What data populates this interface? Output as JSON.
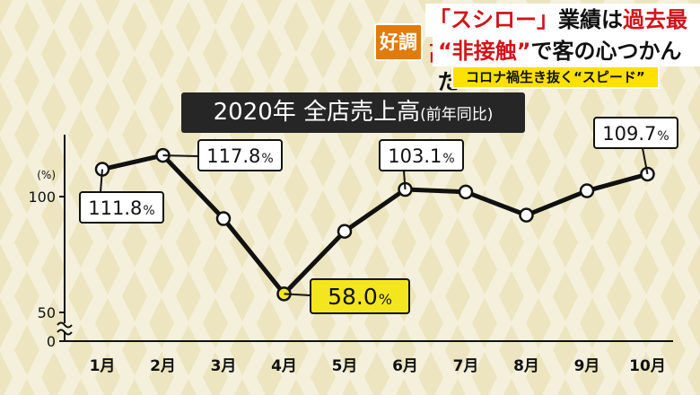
{
  "caption": {
    "badge": "好調",
    "line1_parts": [
      "「スシロー」",
      "業績は",
      "過去最高"
    ],
    "line2_parts": [
      "“非接触”",
      "で客の心つかんだ"
    ],
    "sub": "コロナ禍生き抜く“スピード”",
    "colors": {
      "badge": "#e07b0d",
      "highlight": "#d1141a",
      "sub_bg": "#ffe000"
    }
  },
  "chart_data": {
    "type": "line",
    "title": "2020年 全店売上高",
    "title_note": "(前年同比)",
    "ylabel": "(%)",
    "categories": [
      "1月",
      "2月",
      "3月",
      "4月",
      "5月",
      "6月",
      "7月",
      "8月",
      "9月",
      "10月"
    ],
    "values": [
      111.8,
      117.8,
      90.5,
      58.0,
      85.0,
      103.1,
      102.0,
      92.0,
      102.5,
      109.7
    ],
    "yticks": [
      0,
      50,
      100
    ],
    "axis_break": true,
    "ylim": [
      45,
      125
    ],
    "grid": false,
    "point_labels": [
      {
        "index": 0,
        "text": "111.8",
        "unit": "%"
      },
      {
        "index": 1,
        "text": "117.8",
        "unit": "%"
      },
      {
        "index": 3,
        "text": "58.0",
        "unit": "%",
        "highlight": true
      },
      {
        "index": 5,
        "text": "103.1",
        "unit": "%"
      },
      {
        "index": 9,
        "text": "109.7",
        "unit": "%"
      }
    ],
    "colors": {
      "line": "#111111",
      "marker": "#ffffff",
      "highlight": "#f3e61f"
    }
  }
}
